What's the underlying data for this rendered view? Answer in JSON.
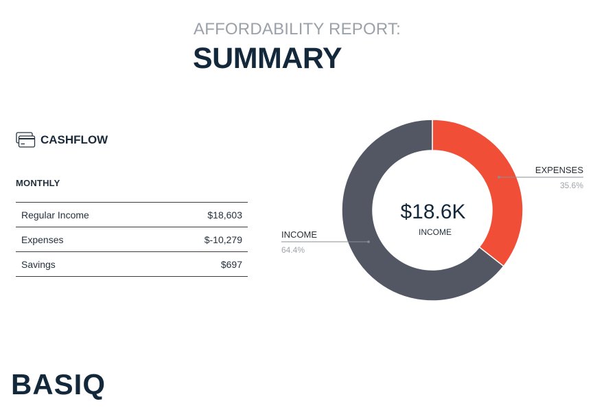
{
  "header": {
    "title_top": "AFFORDABILITY REPORT:",
    "title_main": "SUMMARY"
  },
  "cashflow": {
    "title": "CASHFLOW",
    "icon": "credit-card-icon",
    "period_label": "MONTHLY",
    "rows": [
      {
        "label": "Regular Income",
        "value": "$18,603"
      },
      {
        "label": "Expenses",
        "value": "$-10,279"
      },
      {
        "label": "Savings",
        "value": "$697"
      }
    ]
  },
  "chart_data": {
    "type": "pie",
    "donut": true,
    "center_value": "$18.6K",
    "center_label": "INCOME",
    "slices": [
      {
        "name": "EXPENSES",
        "percent": 35.6,
        "label": "35.6%",
        "color": "#f04e37"
      },
      {
        "name": "INCOME",
        "percent": 64.4,
        "label": "64.4%",
        "color": "#525763"
      }
    ]
  },
  "brand": {
    "logo_text": "BASIQ",
    "color": "#13283a"
  }
}
